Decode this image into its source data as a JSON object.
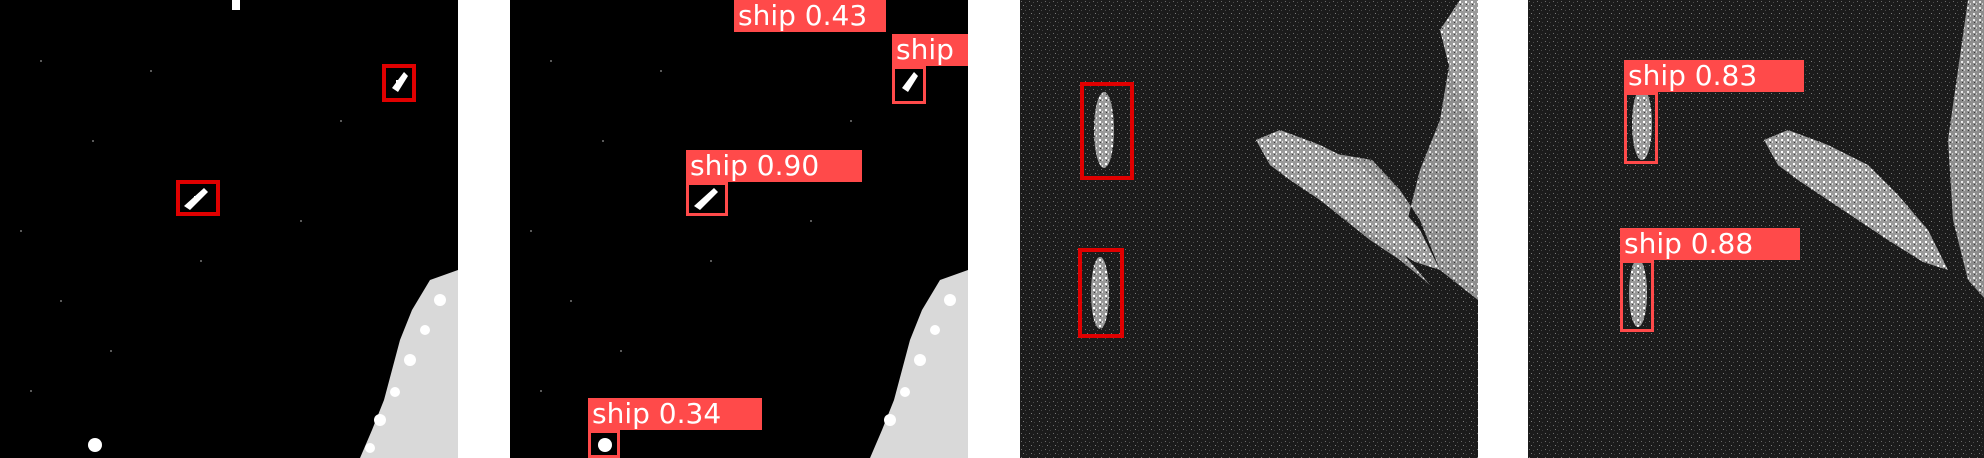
{
  "panels": [
    {
      "id": "panel-1",
      "style": "binary",
      "boxes": []
    },
    {
      "id": "panel-2",
      "style": "binary",
      "detections": [
        {
          "label": "ship 0.43"
        },
        {
          "label": "ship"
        },
        {
          "label": "ship 0.90"
        },
        {
          "label": "ship 0.34"
        }
      ]
    },
    {
      "id": "panel-3",
      "style": "speckle",
      "boxes": []
    },
    {
      "id": "panel-4",
      "style": "speckle",
      "detections": [
        {
          "label": "ship 0.83"
        },
        {
          "label": "ship 0.88"
        }
      ]
    }
  ],
  "colors": {
    "ground_truth_box": "#e00000",
    "detection_box": "#ff4a4a",
    "label_text": "#ffffff"
  }
}
